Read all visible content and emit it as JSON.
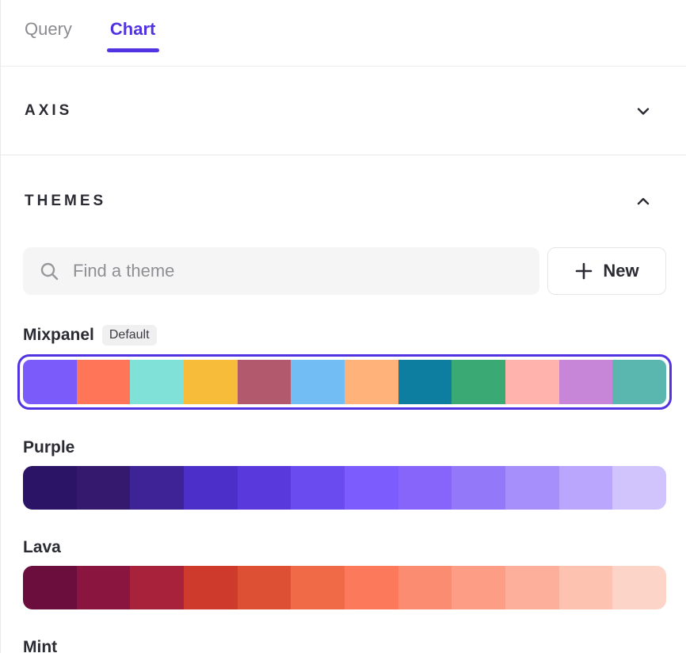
{
  "accent_color": "#5233e2",
  "tabs": {
    "items": [
      {
        "label": "Query",
        "active": false
      },
      {
        "label": "Chart",
        "active": true
      }
    ]
  },
  "axis_section": {
    "title": "AXIS",
    "state": "collapsed",
    "chevron": "chevron-down-icon"
  },
  "themes_section": {
    "title": "THEMES",
    "state": "expanded",
    "chevron": "chevron-up-icon"
  },
  "search": {
    "placeholder": "Find a theme",
    "value": "",
    "icon": "search-icon"
  },
  "new_button": {
    "label": "New",
    "icon": "plus-icon"
  },
  "themes": {
    "items": [
      {
        "name": "Mixpanel",
        "badge": "Default",
        "selected": true,
        "colors": [
          "#7B5CFB",
          "#FF7557",
          "#80E1D9",
          "#F8BC3B",
          "#B2596E",
          "#72BEF4",
          "#FFB27A",
          "#0D7EA0",
          "#3BA974",
          "#FFB3AC",
          "#C886D8",
          "#59B7AF"
        ],
        "dotted_indices": [
          0
        ],
        "dot_style": "dark"
      },
      {
        "name": "Purple",
        "badge": "",
        "selected": false,
        "colors": [
          "#2B1365",
          "#34196F",
          "#3E2397",
          "#4B2FC8",
          "#5939DB",
          "#6A4BF0",
          "#7C5CFC",
          "#8765FA",
          "#9478FA",
          "#A78FFB",
          "#BAA6FC",
          "#D1C4FD"
        ],
        "dotted_indices": [
          6,
          7,
          8
        ],
        "dot_style": "light"
      },
      {
        "name": "Lava",
        "badge": "",
        "selected": false,
        "colors": [
          "#6C0E3D",
          "#8A153E",
          "#A7223A",
          "#CE3B2C",
          "#DE5033",
          "#F06A47",
          "#FC7A5B",
          "#FC8C71",
          "#FD9D85",
          "#FEAF9C",
          "#FEC2B1",
          "#FDD4C8"
        ],
        "dotted_indices": [
          4,
          5
        ],
        "dot_style": "light"
      },
      {
        "name": "Mint",
        "badge": "",
        "selected": false,
        "colors": [],
        "dotted_indices": [],
        "dot_style": "light"
      }
    ]
  }
}
